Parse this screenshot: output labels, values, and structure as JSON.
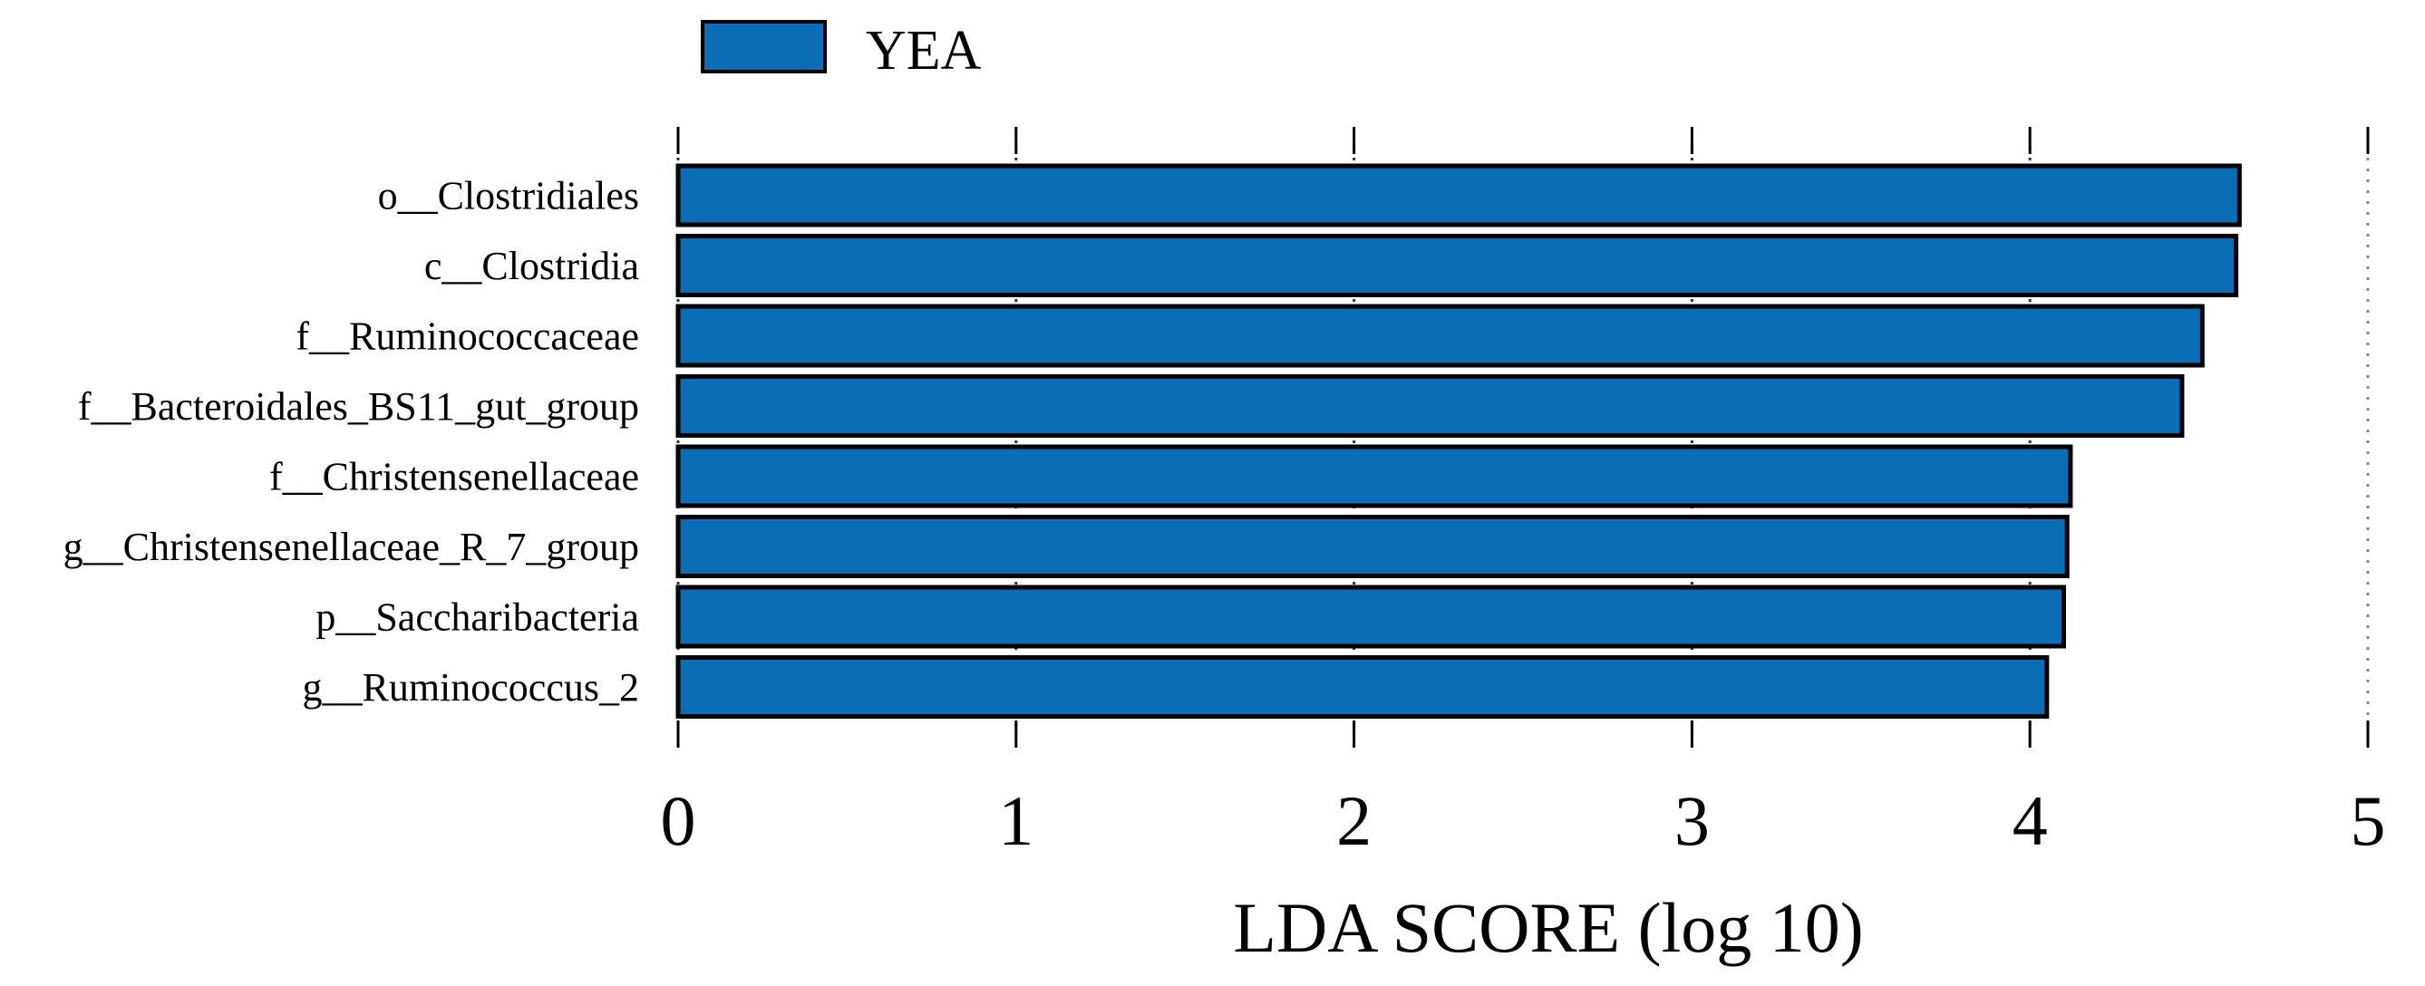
{
  "chart_data": {
    "type": "bar",
    "orientation": "horizontal",
    "categories": [
      "o__Clostridiales",
      "c__Clostridia",
      "f__Ruminococcaceae",
      "f__Bacteroidales_BS11_gut_group",
      "f__Christensenellaceae",
      "g__Christensenellaceae_R_7_group",
      "p__Saccharibacteria",
      "g__Ruminococcus_2"
    ],
    "series": [
      {
        "name": "YEA",
        "color": "#0b6db5",
        "values": [
          4.62,
          4.61,
          4.51,
          4.45,
          4.12,
          4.11,
          4.1,
          4.05
        ]
      }
    ],
    "xlabel": "LDA SCORE (log 10)",
    "ylabel": "",
    "xlim": [
      0,
      5
    ],
    "xticks": [
      "0",
      "1",
      "2",
      "3",
      "4",
      "5"
    ],
    "grid": "vertical-dotted",
    "legend_position": "top-left"
  }
}
